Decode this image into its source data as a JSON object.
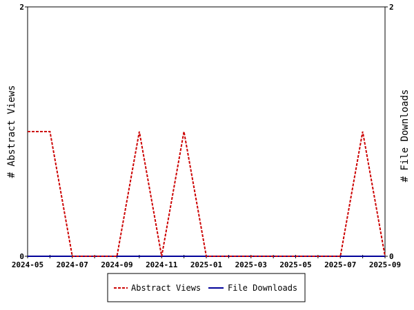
{
  "chart_data": {
    "type": "line",
    "x": [
      "2024-05",
      "2024-06",
      "2024-07",
      "2024-08",
      "2024-09",
      "2024-10",
      "2024-11",
      "2024-12",
      "2025-01",
      "2025-02",
      "2025-03",
      "2025-04",
      "2025-05",
      "2025-06",
      "2025-07",
      "2025-08",
      "2025-09"
    ],
    "x_tick_labels": [
      "2024-05",
      "2024-07",
      "2024-09",
      "2024-11",
      "2025-01",
      "2025-03",
      "2025-05",
      "2025-07",
      "2025-09"
    ],
    "series": [
      {
        "name": "Abstract Views",
        "values": [
          1,
          1,
          0,
          0,
          0,
          1,
          0,
          1,
          0,
          0,
          0,
          0,
          0,
          0,
          0,
          1,
          0
        ],
        "color": "#cc0000",
        "style": "dashed",
        "axis": "left"
      },
      {
        "name": "File Downloads",
        "values": [
          0,
          0,
          0,
          0,
          0,
          0,
          0,
          0,
          0,
          0,
          0,
          0,
          0,
          0,
          0,
          0,
          0
        ],
        "color": "#000099",
        "style": "solid",
        "axis": "right"
      }
    ],
    "ylabel_left": "# Abstract Views",
    "ylabel_right": "# File Downloads",
    "ylim_left": [
      0,
      2
    ],
    "ylim_right": [
      0,
      2
    ],
    "y_tick_labels_left": [
      "0",
      "2"
    ],
    "y_tick_labels_right": [
      "0",
      "2"
    ],
    "grid": false,
    "legend_placement": "bottom"
  }
}
